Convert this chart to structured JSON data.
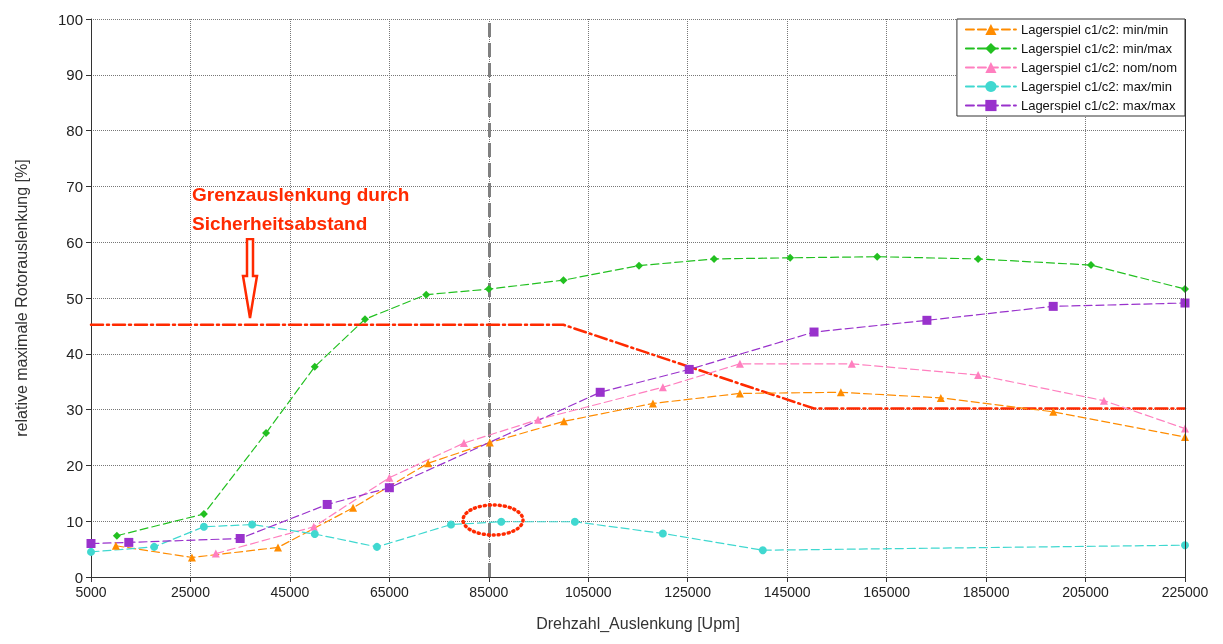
{
  "chart_data": {
    "type": "line",
    "xlabel": "Drehzahl_Auslenkung [Upm]",
    "ylabel": "relative maximale Rotorauslenkung [%]",
    "xlim": [
      5000,
      225000
    ],
    "xticks": [
      5000,
      25000,
      45000,
      65000,
      85000,
      105000,
      125000,
      145000,
      165000,
      185000,
      205000,
      225000
    ],
    "ylim": [
      0,
      100
    ],
    "yticks": [
      0,
      10,
      20,
      30,
      40,
      50,
      60,
      70,
      80,
      90,
      100
    ],
    "grid": true,
    "legend": "top right",
    "line_style": "dashed",
    "series": [
      {
        "name": "Lagerspiel c1/c2: min/min",
        "color": "#ff8c00",
        "marker": "triangle",
        "x": [
          10000,
          25300,
          42600,
          57700,
          72800,
          85200,
          100100,
          118000,
          135500,
          155800,
          175900,
          198500,
          225000
        ],
        "values": [
          5.6,
          3.5,
          5.3,
          12.4,
          20.4,
          24.1,
          27.9,
          31.1,
          32.9,
          33.1,
          32.1,
          29.6,
          25.1
        ]
      },
      {
        "name": "Lagerspiel c1/c2: min/max",
        "color": "#22c020",
        "marker": "diamond",
        "x": [
          10200,
          27700,
          40200,
          50000,
          60100,
          72400,
          85000,
          100000,
          115200,
          130300,
          145600,
          163100,
          183400,
          206100,
          225000
        ],
        "values": [
          7.4,
          11.3,
          25.8,
          37.7,
          46.2,
          50.6,
          51.6,
          53.2,
          55.8,
          57.0,
          57.2,
          57.4,
          57.0,
          55.9,
          51.6
        ]
      },
      {
        "name": "Lagerspiel c1/c2: nom/nom",
        "color": "#ff7fbf",
        "marker": "triangle",
        "x": [
          30100,
          49800,
          65000,
          80000,
          94900,
          120000,
          135500,
          158000,
          183400,
          208700,
          225000
        ],
        "values": [
          4.2,
          9.0,
          17.8,
          24.0,
          28.2,
          34.0,
          38.2,
          38.2,
          36.2,
          31.6,
          26.6
        ]
      },
      {
        "name": "Lagerspiel c1/c2: max/min",
        "color": "#40d8d0",
        "marker": "circle",
        "x": [
          5000,
          17700,
          27700,
          37400,
          50000,
          62500,
          77400,
          87500,
          102300,
          120000,
          140100,
          225000
        ],
        "values": [
          4.5,
          5.4,
          9.0,
          9.4,
          7.7,
          5.4,
          9.4,
          9.9,
          9.9,
          7.8,
          4.8,
          5.7
        ]
      },
      {
        "name": "Lagerspiel c1/c2: max/max",
        "color": "#9932cc",
        "marker": "square",
        "x": [
          5000,
          12600,
          35000,
          52500,
          65000,
          107400,
          125300,
          150400,
          173100,
          198500,
          225000
        ],
        "values": [
          6.0,
          6.2,
          6.9,
          13.0,
          16.0,
          33.1,
          37.2,
          43.9,
          46.0,
          48.5,
          49.1
        ]
      },
      {
        "color": "#ff2a00",
        "marker": "none",
        "x": [
          5000,
          100000,
          150400,
          225000
        ],
        "values": [
          45.2,
          45.2,
          30.2,
          30.2
        ]
      }
    ],
    "ref_lines": [
      {
        "axis": "x",
        "value": 85000,
        "color": "#808080",
        "line_style": "dashed"
      }
    ],
    "annotations": [
      "Grenzauslenkung durch\nSicherheitsabstand"
    ]
  }
}
